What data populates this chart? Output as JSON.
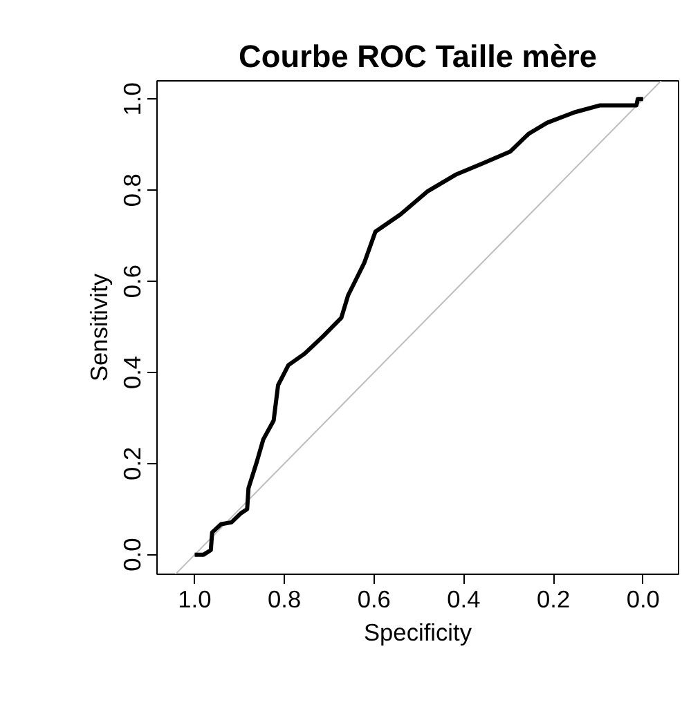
{
  "chart_data": {
    "type": "line",
    "title": "Courbe ROC Taille mère",
    "xlabel": "Specificity",
    "ylabel": "Sensitivity",
    "xlim": [
      1.084,
      -0.079
    ],
    "ylim": [
      -0.043,
      1.04
    ],
    "xticks": [
      {
        "value": 1.0,
        "label": "1.0"
      },
      0.8,
      0.6,
      0.4,
      0.2,
      {
        "value": 0.0,
        "label": "0.0"
      }
    ],
    "yticks": [
      {
        "value": 0.0,
        "label": "0.0"
      },
      0.2,
      0.4,
      0.6,
      0.8,
      {
        "value": 1.0,
        "label": "1.0"
      }
    ],
    "grid": false,
    "series": [
      {
        "color": "#bebebe",
        "x": [
          1.043,
          -0.04
        ],
        "values": [
          -0.043,
          1.04
        ]
      },
      {
        "color": "#000000",
        "x": [
          1.0,
          0.98,
          0.964,
          0.961,
          0.941,
          0.918,
          0.898,
          0.883,
          0.88,
          0.862,
          0.847,
          0.824,
          0.814,
          0.791,
          0.755,
          0.714,
          0.673,
          0.658,
          0.622,
          0.597,
          0.541,
          0.48,
          0.418,
          0.357,
          0.296,
          0.255,
          0.214,
          0.153,
          0.097,
          0.015,
          0.012,
          0.0
        ],
        "values": [
          0.0,
          0.0,
          0.01,
          0.049,
          0.067,
          0.071,
          0.09,
          0.1,
          0.146,
          0.202,
          0.253,
          0.294,
          0.372,
          0.416,
          0.441,
          0.479,
          0.52,
          0.569,
          0.64,
          0.709,
          0.747,
          0.798,
          0.834,
          0.859,
          0.885,
          0.924,
          0.948,
          0.971,
          0.986,
          0.986,
          1.0,
          1.0
        ]
      }
    ]
  }
}
